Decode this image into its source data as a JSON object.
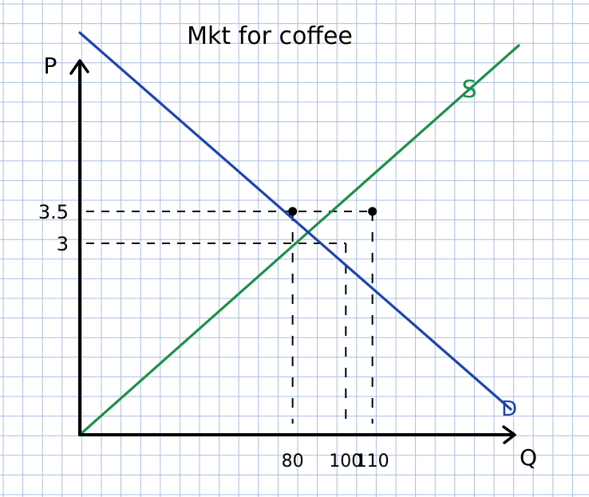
{
  "chart_data": {
    "type": "line",
    "title": "Mkt for coffee",
    "xlabel": "Q",
    "ylabel": "P",
    "grid": true,
    "series": [
      {
        "name": "S",
        "x": [
          0,
          165
        ],
        "y": [
          0,
          6.1
        ]
      },
      {
        "name": "D",
        "x": [
          0,
          162
        ],
        "y": [
          6.3,
          0.4
        ]
      }
    ],
    "points": [
      {
        "x": 80,
        "y": 3.5
      },
      {
        "x": 110,
        "y": 3.5
      }
    ],
    "guides": [
      {
        "x": 80,
        "y": 3.5
      },
      {
        "x": 100,
        "y": 3
      },
      {
        "x": 110,
        "y": 3.5
      }
    ],
    "x_ticks": [
      {
        "value": 80,
        "label": "80"
      },
      {
        "value": 100,
        "label": "100"
      },
      {
        "value": 110,
        "label": "110"
      }
    ],
    "y_ticks": [
      {
        "value": 3.5,
        "label": "3.5"
      },
      {
        "value": 3,
        "label": "3"
      }
    ],
    "colors": {
      "grid": "#a9bfe0",
      "axes": "#000000",
      "supply": "#1e8f4a",
      "demand": "#1f44b0"
    }
  }
}
